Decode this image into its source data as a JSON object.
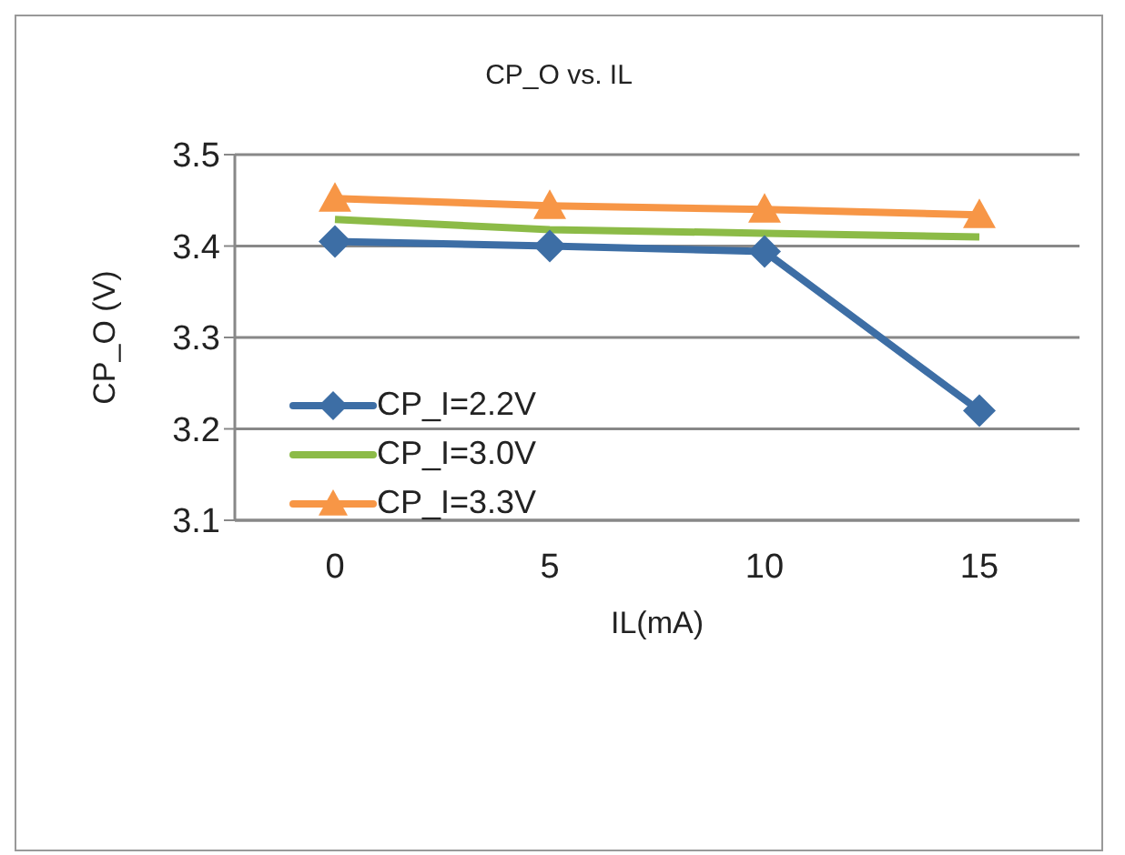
{
  "chart_data": {
    "type": "line",
    "title": "CP_O  vs.  IL",
    "xlabel": "IL(mA)",
    "ylabel": "CP_O  (V)",
    "categories": [
      "0",
      "5",
      "10",
      "15"
    ],
    "series": [
      {
        "name": "CP_I=2.2V",
        "color": "#3d6ea5",
        "marker": "diamond",
        "values": [
          3.405,
          3.4,
          3.394,
          3.22
        ]
      },
      {
        "name": "CP_I=3.0V",
        "color": "#8cbb47",
        "marker": "none",
        "values": [
          3.429,
          3.418,
          3.414,
          3.41
        ]
      },
      {
        "name": "CP_I=3.3V",
        "color": "#f79646",
        "marker": "triangle",
        "values": [
          3.452,
          3.444,
          3.44,
          3.434
        ]
      }
    ],
    "ylim": [
      3.1,
      3.5
    ],
    "yticks": [
      3.1,
      3.2,
      3.3,
      3.4,
      3.5
    ],
    "grid": "y",
    "legend": "left"
  }
}
